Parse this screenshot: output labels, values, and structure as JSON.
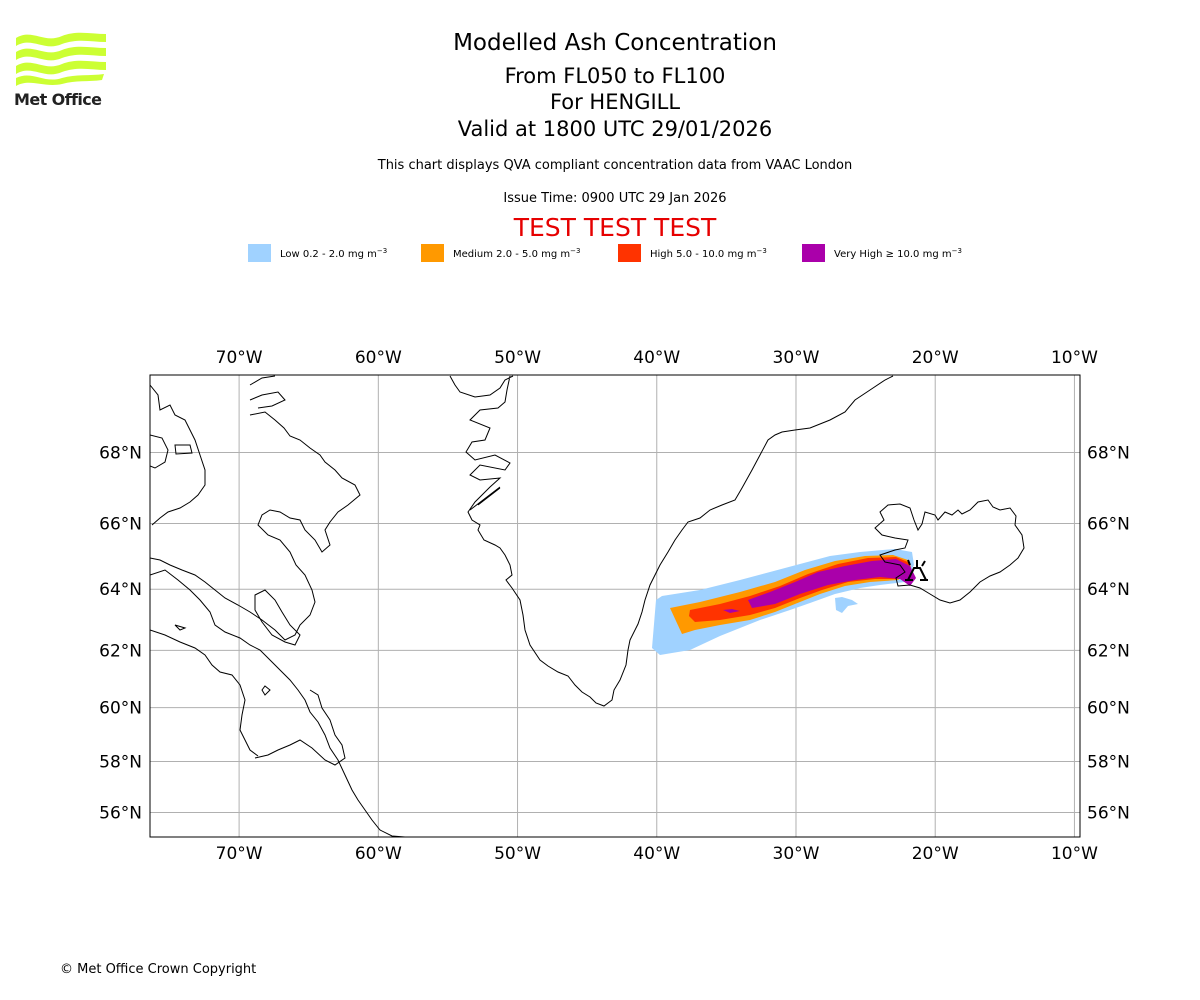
{
  "header": {
    "logo_text": "Met Office",
    "title": "Modelled Ash Concentration",
    "levels": "From FL050 to FL100",
    "location": "For HENGILL",
    "valid": "Valid at 1800 UTC 29/01/2026",
    "subtitle": "This chart displays QVA compliant concentration data from VAAC London",
    "issue_time": "Issue Time: 0900 UTC 29 Jan 2026",
    "test_banner": "TEST TEST TEST"
  },
  "colors": {
    "logo_green": "#ccff33",
    "test_red": "#e60000",
    "grid": "#b0b0b0"
  },
  "legend": [
    {
      "label": "Low 0.2 - 2.0 mg m",
      "exp": "−3",
      "color": "#a0d2ff"
    },
    {
      "label": "Medium 2.0 - 5.0 mg m",
      "exp": "−3",
      "color": "#ff9900"
    },
    {
      "label": "High 5.0 - 10.0 mg m",
      "exp": "−3",
      "color": "#ff3300"
    },
    {
      "label": "Very High ≥ 10.0 mg m",
      "exp": "−3",
      "color": "#aa00aa"
    }
  ],
  "map": {
    "projection": "mercator",
    "lon_range": [
      -76.4,
      -9.6
    ],
    "lat_range": [
      55.0,
      70.0
    ],
    "lon_ticks": [
      "70°W",
      "60°W",
      "50°W",
      "40°W",
      "30°W",
      "20°W",
      "10°W"
    ],
    "lon_tick_values": [
      -70,
      -60,
      -50,
      -40,
      -30,
      -20,
      -10
    ],
    "lat_ticks": [
      "68°N",
      "66°N",
      "64°N",
      "62°N",
      "60°N",
      "58°N",
      "56°N"
    ],
    "lat_tick_values": [
      68,
      66,
      64,
      62,
      60,
      58,
      56
    ],
    "volcano": {
      "name": "HENGILL",
      "lon": -21.3,
      "lat": 64.08,
      "icon": "volcano-symbol-icon"
    },
    "ash_levels": [
      "low",
      "medium",
      "high",
      "very_high"
    ]
  },
  "footer": {
    "copyright": "© Met Office Crown Copyright"
  }
}
